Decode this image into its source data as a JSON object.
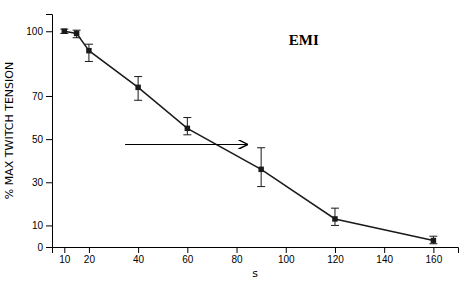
{
  "chart_data": {
    "type": "line",
    "xlabel": "s",
    "ylabel": "% MAX TWITCH TENSION",
    "annotation": "EMI",
    "x": [
      10,
      15,
      20,
      40,
      60,
      90,
      120,
      160
    ],
    "values": [
      100,
      99,
      91,
      74,
      55,
      36,
      13,
      3
    ],
    "error_upper": [
      1,
      1.5,
      3,
      5,
      5,
      10,
      5,
      2
    ],
    "error_lower": [
      1,
      2,
      5,
      6,
      3,
      8,
      3,
      1.5
    ],
    "color": "#1a1a1a",
    "marker": "square",
    "xlim": [
      5,
      170
    ],
    "ylim": [
      0,
      108
    ],
    "xticks": [
      10,
      20,
      40,
      60,
      80,
      100,
      120,
      140,
      160
    ],
    "yticks": [
      0,
      10,
      30,
      50,
      70,
      100
    ]
  }
}
